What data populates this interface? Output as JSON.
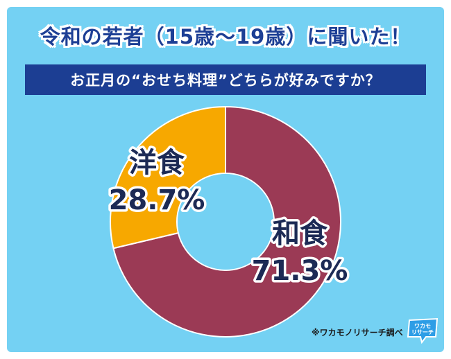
{
  "header": {
    "title": "令和の若者（15歳～19歳）に聞いた！",
    "question": "お正月の“おせち料理”どちらが好みですか？"
  },
  "chart_data": {
    "type": "pie",
    "donut": true,
    "slices": [
      {
        "label": "和食",
        "value": 71.3,
        "value_label": "71.3%",
        "color": "#9b3a55"
      },
      {
        "label": "洋食",
        "value": 28.7,
        "value_label": "28.7%",
        "color": "#f7a800"
      }
    ]
  },
  "footer": {
    "note": "※ワカモノリサーチ調べ",
    "logo_text": "ワカモノリサーチ"
  }
}
